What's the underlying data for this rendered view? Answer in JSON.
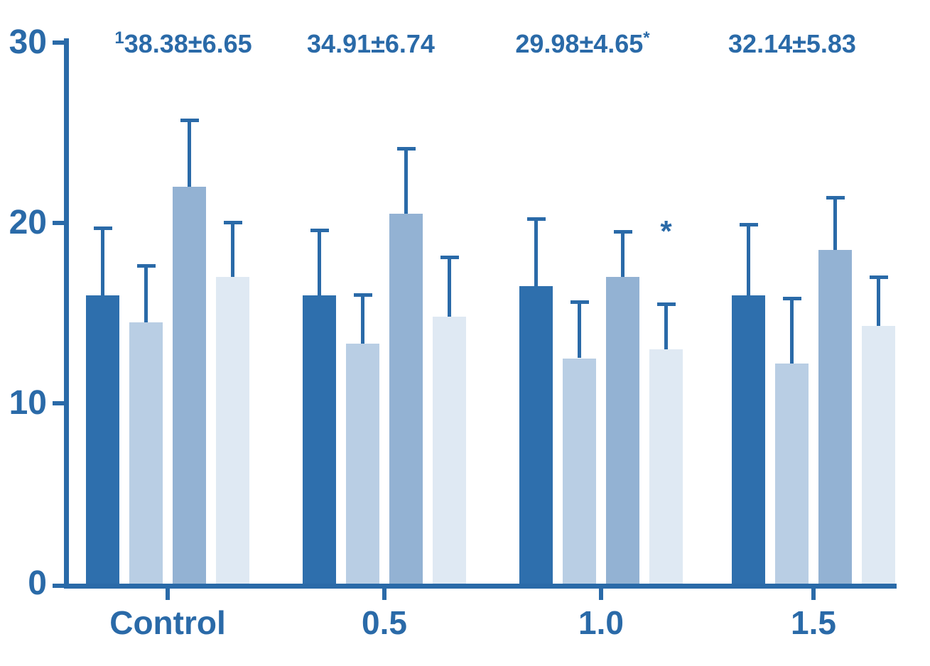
{
  "chart_data": {
    "type": "bar",
    "title": "",
    "categories": [
      "Control",
      "0.5",
      "1.0",
      "1.5"
    ],
    "series": [
      {
        "name": "series-1-dark-blue",
        "color": "#2e6fad",
        "values": [
          16.0,
          16.0,
          16.5,
          16.0
        ],
        "errors": [
          3.8,
          3.7,
          3.8,
          4.0
        ]
      },
      {
        "name": "series-2-pale-blue",
        "color": "#b9cee4",
        "values": [
          14.5,
          13.3,
          12.5,
          12.2
        ],
        "errors": [
          3.2,
          2.8,
          3.2,
          3.7
        ]
      },
      {
        "name": "series-3-medium-blue",
        "color": "#93b2d3",
        "values": [
          22.0,
          20.5,
          17.0,
          18.5
        ],
        "errors": [
          3.8,
          3.7,
          2.6,
          3.0
        ]
      },
      {
        "name": "series-4-light-blue",
        "color": "#dfe9f3",
        "values": [
          17.0,
          14.8,
          13.0,
          14.3
        ],
        "errors": [
          3.1,
          3.4,
          2.6,
          2.8
        ]
      }
    ],
    "ylim": [
      0,
      30
    ],
    "yticks": [
      0,
      10,
      20,
      30
    ],
    "xlabel": "",
    "ylabel": "",
    "grid": false,
    "legend": "none",
    "axis_color": "#2a6aa8",
    "text_color": "#2a6aa8",
    "error_bar_color": "#2a6aa8",
    "group_annotations": [
      {
        "sup_prefix": "1",
        "text": "38.38±6.65",
        "sup_suffix": ""
      },
      {
        "sup_prefix": "",
        "text": "34.91±6.74",
        "sup_suffix": ""
      },
      {
        "sup_prefix": "",
        "text": "29.98±4.65",
        "sup_suffix": "*"
      },
      {
        "sup_prefix": "",
        "text": "32.14±5.83",
        "sup_suffix": ""
      }
    ],
    "significance_marks": [
      {
        "group_index": 2,
        "bar_index": 3,
        "text": "*",
        "y_value": 19.8
      }
    ]
  }
}
